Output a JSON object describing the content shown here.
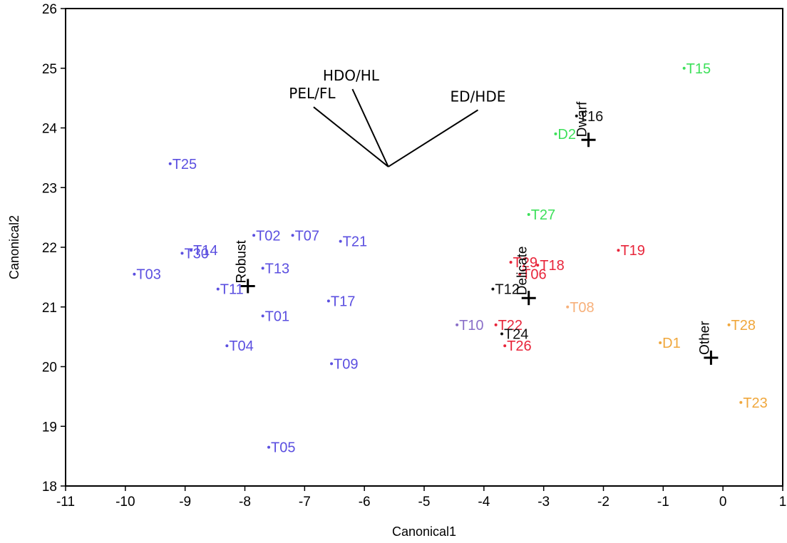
{
  "chart_data": {
    "type": "scatter",
    "title": "",
    "xlabel": "Canonical1",
    "ylabel": "Canonical2",
    "xlim": [
      -11,
      1
    ],
    "ylim": [
      18,
      26
    ],
    "xticks": [
      "-11",
      "-10",
      "-9",
      "-8",
      "-7",
      "-6",
      "-5",
      "-4",
      "-3",
      "-2",
      "-1",
      "0",
      "1"
    ],
    "yticks": [
      "18",
      "19",
      "20",
      "21",
      "22",
      "23",
      "24",
      "25",
      "26"
    ],
    "grid": false,
    "colors": {
      "Robust": "#5b4fe0",
      "Delicate": "#e8253a",
      "Dwarf": "#3de05a",
      "Other": "#f0a73c",
      "Unassigned": "#111111",
      "Mixed": "#8a6fc8",
      "Pale": "#f7b07a"
    },
    "points": [
      {
        "label": "T15",
        "x": -0.65,
        "y": 25.0,
        "group": "Dwarf"
      },
      {
        "label": "T16",
        "x": -2.45,
        "y": 24.2,
        "group": "Unassigned"
      },
      {
        "label": "D2",
        "x": -2.8,
        "y": 23.9,
        "group": "Dwarf"
      },
      {
        "label": "T25",
        "x": -9.25,
        "y": 23.4,
        "group": "Robust"
      },
      {
        "label": "T27",
        "x": -3.25,
        "y": 22.55,
        "group": "Dwarf"
      },
      {
        "label": "T02",
        "x": -7.85,
        "y": 22.2,
        "group": "Robust"
      },
      {
        "label": "T07",
        "x": -7.2,
        "y": 22.2,
        "group": "Robust"
      },
      {
        "label": "T21",
        "x": -6.4,
        "y": 22.1,
        "group": "Robust"
      },
      {
        "label": "T14",
        "x": -8.9,
        "y": 21.95,
        "group": "Robust"
      },
      {
        "label": "T30",
        "x": -9.05,
        "y": 21.9,
        "group": "Robust"
      },
      {
        "label": "T19",
        "x": -1.75,
        "y": 21.95,
        "group": "Delicate"
      },
      {
        "label": "T29",
        "x": -3.55,
        "y": 21.75,
        "group": "Delicate"
      },
      {
        "label": "T18",
        "x": -3.1,
        "y": 21.7,
        "group": "Delicate"
      },
      {
        "label": "T13",
        "x": -7.7,
        "y": 21.65,
        "group": "Robust"
      },
      {
        "label": "T06",
        "x": -3.4,
        "y": 21.55,
        "group": "Delicate"
      },
      {
        "label": "T03",
        "x": -9.85,
        "y": 21.55,
        "group": "Robust"
      },
      {
        "label": "T12",
        "x": -3.85,
        "y": 21.3,
        "group": "Unassigned"
      },
      {
        "label": "T11",
        "x": -8.45,
        "y": 21.3,
        "group": "Robust"
      },
      {
        "label": "T17",
        "x": -6.6,
        "y": 21.1,
        "group": "Robust"
      },
      {
        "label": "T08",
        "x": -2.6,
        "y": 21.0,
        "group": "Pale"
      },
      {
        "label": "T01",
        "x": -7.7,
        "y": 20.85,
        "group": "Robust"
      },
      {
        "label": "T22",
        "x": -3.8,
        "y": 20.7,
        "group": "Delicate"
      },
      {
        "label": "T28",
        "x": 0.1,
        "y": 20.7,
        "group": "Other"
      },
      {
        "label": "T10",
        "x": -4.45,
        "y": 20.7,
        "group": "Mixed"
      },
      {
        "label": "T24",
        "x": -3.7,
        "y": 20.55,
        "group": "Unassigned"
      },
      {
        "label": "D1",
        "x": -1.05,
        "y": 20.4,
        "group": "Other"
      },
      {
        "label": "T04",
        "x": -8.3,
        "y": 20.35,
        "group": "Robust"
      },
      {
        "label": "T26",
        "x": -3.65,
        "y": 20.35,
        "group": "Delicate"
      },
      {
        "label": "T09",
        "x": -6.55,
        "y": 20.05,
        "group": "Robust"
      },
      {
        "label": "T23",
        "x": 0.3,
        "y": 19.4,
        "group": "Other"
      },
      {
        "label": "T05",
        "x": -7.6,
        "y": 18.65,
        "group": "Robust"
      }
    ],
    "centroids": [
      {
        "label": "Dwarf",
        "x": -2.25,
        "y": 23.8
      },
      {
        "label": "Robust",
        "x": -7.95,
        "y": 21.35
      },
      {
        "label": "Delicate",
        "x": -3.25,
        "y": 21.15
      },
      {
        "label": "Other",
        "x": -0.2,
        "y": 20.15
      }
    ],
    "biplot": {
      "origin": {
        "x": -5.6,
        "y": 23.35
      },
      "rays": [
        {
          "label": "PEL/FL",
          "x": -6.85,
          "y": 24.35
        },
        {
          "label": "HDO/HL",
          "x": -6.2,
          "y": 24.65
        },
        {
          "label": "ED/HDE",
          "x": -4.1,
          "y": 24.3
        }
      ]
    }
  }
}
